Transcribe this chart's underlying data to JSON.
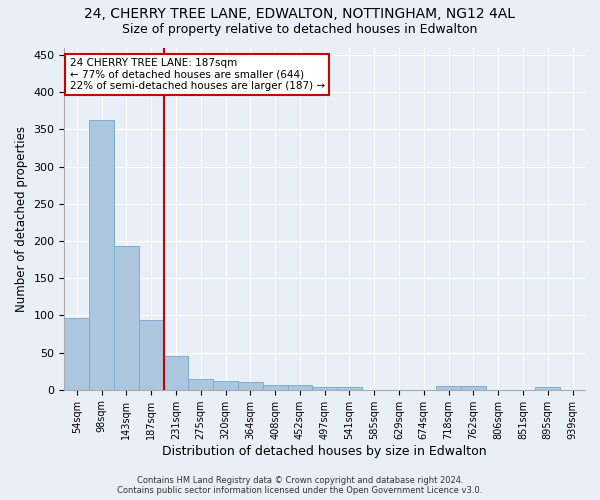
{
  "title_line1": "24, CHERRY TREE LANE, EDWALTON, NOTTINGHAM, NG12 4AL",
  "title_line2": "Size of property relative to detached houses in Edwalton",
  "xlabel": "Distribution of detached houses by size in Edwalton",
  "ylabel": "Number of detached properties",
  "footer_line1": "Contains HM Land Registry data © Crown copyright and database right 2024.",
  "footer_line2": "Contains public sector information licensed under the Open Government Licence v3.0.",
  "bin_labels": [
    "54sqm",
    "98sqm",
    "143sqm",
    "187sqm",
    "231sqm",
    "275sqm",
    "320sqm",
    "364sqm",
    "408sqm",
    "452sqm",
    "497sqm",
    "541sqm",
    "585sqm",
    "629sqm",
    "674sqm",
    "718sqm",
    "762sqm",
    "806sqm",
    "851sqm",
    "895sqm",
    "939sqm"
  ],
  "bar_heights": [
    96,
    362,
    193,
    94,
    45,
    15,
    12,
    10,
    7,
    6,
    4,
    3,
    0,
    0,
    0,
    5,
    5,
    0,
    0,
    4,
    0
  ],
  "bar_color": "#adc6e0",
  "bar_edge_color": "#7aafd4",
  "vline_x": 3.5,
  "vline_color": "#cc0000",
  "annotation_text": "24 CHERRY TREE LANE: 187sqm\n← 77% of detached houses are smaller (644)\n22% of semi-detached houses are larger (187) →",
  "annotation_box_color": "#ffffff",
  "annotation_box_edge": "#cc0000",
  "ylim": [
    0,
    460
  ],
  "yticks": [
    0,
    50,
    100,
    150,
    200,
    250,
    300,
    350,
    400,
    450
  ],
  "bg_color": "#e8eff6",
  "plot_bg_color": "#e8eff6",
  "grid_color": "#ffffff",
  "title1_fontsize": 10,
  "title2_fontsize": 9,
  "xlabel_fontsize": 9,
  "ylabel_fontsize": 8.5
}
